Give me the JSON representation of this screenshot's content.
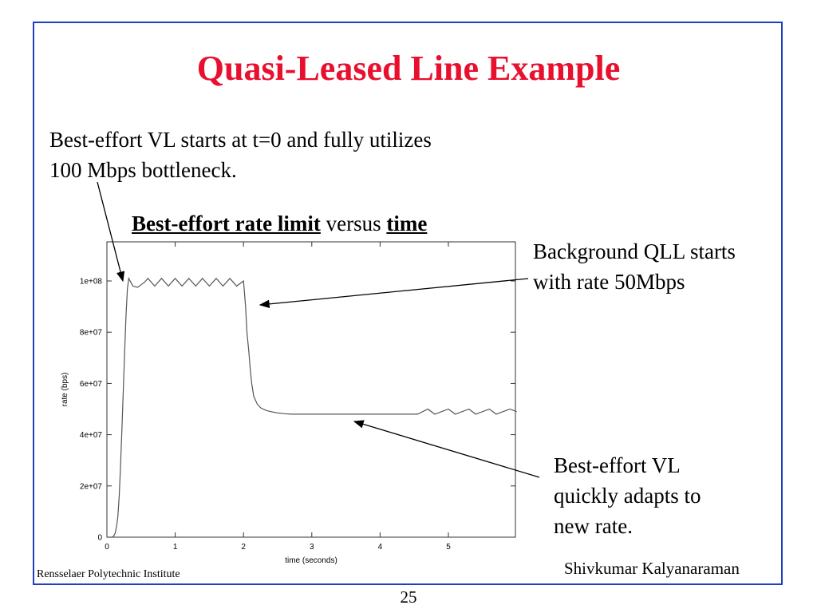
{
  "slide": {
    "title": "Quasi-Leased Line Example",
    "intro_lines": [
      "Best-effort VL starts at t=0 and fully utilizes",
      "100 Mbps bottleneck."
    ],
    "chart_heading": {
      "part1": "Best-effort rate limit",
      "part2": " versus ",
      "part3": "time"
    },
    "annotation_qll_lines": [
      "Background QLL starts",
      "with rate 50Mbps"
    ],
    "annotation_adapt_lines": [
      "Best-effort VL",
      "quickly adapts to",
      "new rate."
    ],
    "footer_left": "Rensselaer Polytechnic Institute",
    "footer_right": "Shivkumar Kalyanaraman",
    "page_number": "25",
    "colors": {
      "title": "#e8102e",
      "frame": "#1f3fbf",
      "line": "#555555"
    }
  },
  "chart_data": {
    "type": "line",
    "xlabel": "time (seconds)",
    "ylabel": "rate (bps)",
    "xlim": [
      0,
      6
    ],
    "ylim": [
      0,
      110000000
    ],
    "x_ticks": [
      0,
      1,
      2,
      3,
      4,
      5
    ],
    "x_tick_labels": [
      "0",
      "1",
      "2",
      "3",
      "4",
      "5"
    ],
    "y_ticks": [
      0,
      20000000,
      40000000,
      60000000,
      80000000,
      100000000
    ],
    "y_tick_labels": [
      "0",
      "2e+07",
      "4e+07",
      "6e+07",
      "8e+07",
      "1e+08"
    ],
    "grid": false,
    "series": [
      {
        "x": [
          0,
          0.08,
          0.1,
          0.12,
          0.14,
          0.16,
          0.18,
          0.2,
          0.22,
          0.24,
          0.26,
          0.28,
          0.3,
          0.32,
          0.38,
          0.45,
          0.5,
          0.55,
          0.6,
          0.7,
          0.8,
          0.9,
          1.0,
          1.1,
          1.2,
          1.3,
          1.4,
          1.5,
          1.6,
          1.7,
          1.8,
          1.9,
          2.0,
          2.03,
          2.05,
          2.08,
          2.1,
          2.12,
          2.15,
          2.2,
          2.25,
          2.3,
          2.35,
          2.4,
          2.5,
          2.6,
          2.7,
          2.8,
          3.0,
          3.5,
          4.0,
          4.5,
          4.55,
          4.7,
          4.8,
          5.0,
          5.1,
          5.3,
          5.4,
          5.6,
          5.7,
          5.9,
          6.0
        ],
        "y": [
          0,
          0,
          500000,
          1500000,
          4000000,
          8000000,
          16000000,
          28000000,
          42000000,
          57000000,
          73000000,
          87000000,
          97000000,
          101000000,
          98000000,
          97500000,
          98500000,
          99500000,
          101000000,
          98000000,
          101000000,
          98000000,
          101000000,
          98000000,
          101000000,
          98000000,
          101000000,
          98000000,
          101000000,
          98000000,
          101000000,
          98000000,
          100000000,
          90000000,
          80000000,
          72000000,
          65000000,
          60000000,
          55000000,
          52000000,
          50500000,
          49800000,
          49300000,
          49000000,
          48500000,
          48200000,
          48000000,
          48000000,
          48000000,
          48000000,
          48000000,
          48000000,
          48000000,
          50000000,
          48000000,
          50000000,
          48000000,
          50000000,
          48000000,
          50000000,
          48000000,
          50000000,
          49000000
        ]
      }
    ]
  }
}
